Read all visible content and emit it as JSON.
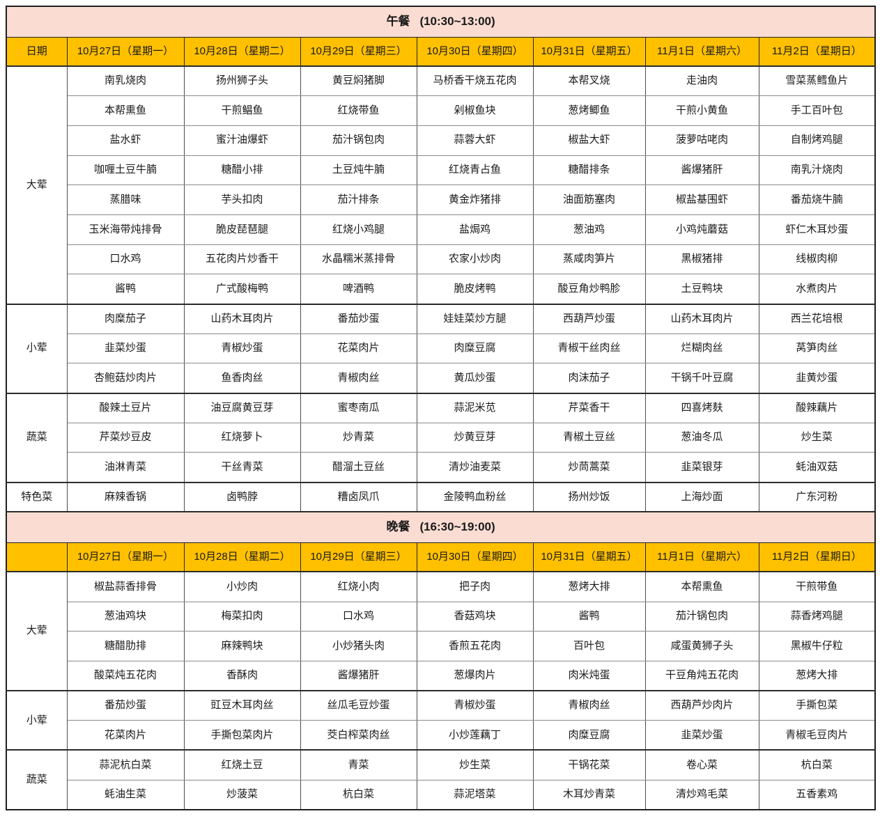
{
  "colors": {
    "section_header_bg": "#fadcd2",
    "date_row_bg": "#ffc000",
    "border_dark": "#1f1f1f",
    "cell_text": "#1a1a1a"
  },
  "meals": [
    {
      "title": "午餐",
      "time": "(10:30~13:00)",
      "date_label": "日期",
      "dates": [
        "10月27日（星期一）",
        "10月28日（星期二）",
        "10月29日（星期三）",
        "10月30日（星期四）",
        "10月31日（星期五）",
        "11月1日（星期六）",
        "11月2日（星期日）"
      ],
      "groups": [
        {
          "label": "大荤",
          "rows": [
            [
              "南乳烧肉",
              "扬州狮子头",
              "黄豆焖猪脚",
              "马桥香干烧五花肉",
              "本帮叉烧",
              "走油肉",
              "雪菜蒸鳕鱼片"
            ],
            [
              "本帮熏鱼",
              "干煎鲳鱼",
              "红烧带鱼",
              "剁椒鱼块",
              "葱烤鲫鱼",
              "干煎小黄鱼",
              "手工百叶包"
            ],
            [
              "盐水虾",
              "蜜汁油爆虾",
              "茄汁锅包肉",
              "蒜蓉大虾",
              "椒盐大虾",
              "菠萝咕咾肉",
              "自制烤鸡腿"
            ],
            [
              "咖喱土豆牛腩",
              "糖醋小排",
              "土豆炖牛腩",
              "红烧青占鱼",
              "糖醋排条",
              "酱爆猪肝",
              "南乳汁烧肉"
            ],
            [
              "蒸腊味",
              "芋头扣肉",
              "茄汁排条",
              "黄金炸猪排",
              "油面筋塞肉",
              "椒盐基围虾",
              "番茄烧牛腩"
            ],
            [
              "玉米海带炖排骨",
              "脆皮琵琶腿",
              "红烧小鸡腿",
              "盐焗鸡",
              "葱油鸡",
              "小鸡炖蘑菇",
              "虾仁木耳炒蛋"
            ],
            [
              "口水鸡",
              "五花肉片炒香干",
              "水晶糯米蒸排骨",
              "农家小炒肉",
              "蒸咸肉笋片",
              "黑椒猪排",
              "线椒肉柳"
            ],
            [
              "酱鸭",
              "广式酸梅鸭",
              "啤酒鸭",
              "脆皮烤鸭",
              "酸豆角炒鸭胗",
              "土豆鸭块",
              "水煮肉片"
            ]
          ]
        },
        {
          "label": "小荤",
          "rows": [
            [
              "肉糜茄子",
              "山药木耳肉片",
              "番茄炒蛋",
              "娃娃菜炒方腿",
              "西葫芦炒蛋",
              "山药木耳肉片",
              "西兰花培根"
            ],
            [
              "韭菜炒蛋",
              "青椒炒蛋",
              "花菜肉片",
              "肉糜豆腐",
              "青椒干丝肉丝",
              "烂糊肉丝",
              "莴笋肉丝"
            ],
            [
              "杏鲍菇炒肉片",
              "鱼香肉丝",
              "青椒肉丝",
              "黄瓜炒蛋",
              "肉沫茄子",
              "干锅千叶豆腐",
              "韭黄炒蛋"
            ]
          ]
        },
        {
          "label": "蔬菜",
          "rows": [
            [
              "酸辣土豆片",
              "油豆腐黄豆芽",
              "蜜枣南瓜",
              "蒜泥米苋",
              "芹菜香干",
              "四喜烤麸",
              "酸辣藕片"
            ],
            [
              "芹菜炒豆皮",
              "红烧萝卜",
              "炒青菜",
              "炒黄豆芽",
              "青椒土豆丝",
              "葱油冬瓜",
              "炒生菜"
            ],
            [
              "油淋青菜",
              "干丝青菜",
              "醋溜土豆丝",
              "清炒油麦菜",
              "炒茼蒿菜",
              "韭菜银芽",
              "蚝油双菇"
            ]
          ]
        },
        {
          "label": "特色菜",
          "rows": [
            [
              "麻辣香锅",
              "卤鸭脖",
              "糟卤凤爪",
              "金陵鸭血粉丝",
              "扬州炒饭",
              "上海炒面",
              "广东河粉"
            ]
          ]
        }
      ]
    },
    {
      "title": "晚餐",
      "time": "(16:30~19:00)",
      "date_label": "",
      "dates": [
        "10月27日（星期一）",
        "10月28日（星期二）",
        "10月29日（星期三）",
        "10月30日（星期四）",
        "10月31日（星期五）",
        "11月1日（星期六）",
        "11月2日（星期日）"
      ],
      "groups": [
        {
          "label": "大荤",
          "rows": [
            [
              "椒盐蒜香排骨",
              "小炒肉",
              "红烧小肉",
              "把子肉",
              "葱烤大排",
              "本帮熏鱼",
              "干煎带鱼"
            ],
            [
              "葱油鸡块",
              "梅菜扣肉",
              "口水鸡",
              "香菇鸡块",
              "酱鸭",
              "茄汁锅包肉",
              "蒜香烤鸡腿"
            ],
            [
              "糖醋肋排",
              "麻辣鸭块",
              "小炒猪头肉",
              "香煎五花肉",
              "百叶包",
              "咸蛋黄狮子头",
              "黑椒牛仔粒"
            ],
            [
              "酸菜炖五花肉",
              "香酥肉",
              "酱爆猪肝",
              "葱爆肉片",
              "肉米炖蛋",
              "干豆角炖五花肉",
              "葱烤大排"
            ]
          ]
        },
        {
          "label": "小荤",
          "rows": [
            [
              "番茄炒蛋",
              "豇豆木耳肉丝",
              "丝瓜毛豆炒蛋",
              "青椒炒蛋",
              "青椒肉丝",
              "西葫芦炒肉片",
              "手撕包菜"
            ],
            [
              "花菜肉片",
              "手撕包菜肉片",
              "茭白榨菜肉丝",
              "小炒莲藕丁",
              "肉糜豆腐",
              "韭菜炒蛋",
              "青椒毛豆肉片"
            ]
          ]
        },
        {
          "label": "蔬菜",
          "rows": [
            [
              "蒜泥杭白菜",
              "红烧土豆",
              "青菜",
              "炒生菜",
              "干锅花菜",
              "卷心菜",
              "杭白菜"
            ],
            [
              "蚝油生菜",
              "炒菠菜",
              "杭白菜",
              "蒜泥塔菜",
              "木耳炒青菜",
              "清炒鸡毛菜",
              "五香素鸡"
            ]
          ]
        }
      ]
    }
  ]
}
